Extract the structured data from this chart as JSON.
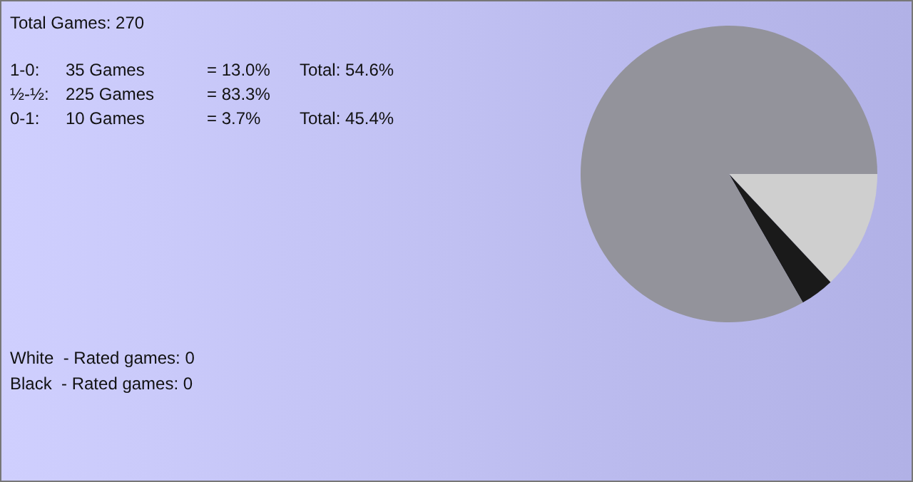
{
  "chart_data": {
    "type": "pie",
    "categories": [
      null,
      null,
      null
    ],
    "values": [
      13.0,
      3.7,
      83.3
    ],
    "colors": [
      "#cfcfcf",
      "#1a1a1a",
      "#93939b"
    ],
    "annotations": [
      "Total Games: 270",
      "1-0:",
      "35 Games",
      "= 13.0%",
      "Total: 54.6%",
      "½-½:",
      "225 Games",
      "= 83.3%",
      "0-1:",
      "10 Games",
      "= 3.7%",
      "Total: 45.4%",
      "White  - Rated games: 0",
      "Black  - Rated games: 0"
    ]
  }
}
